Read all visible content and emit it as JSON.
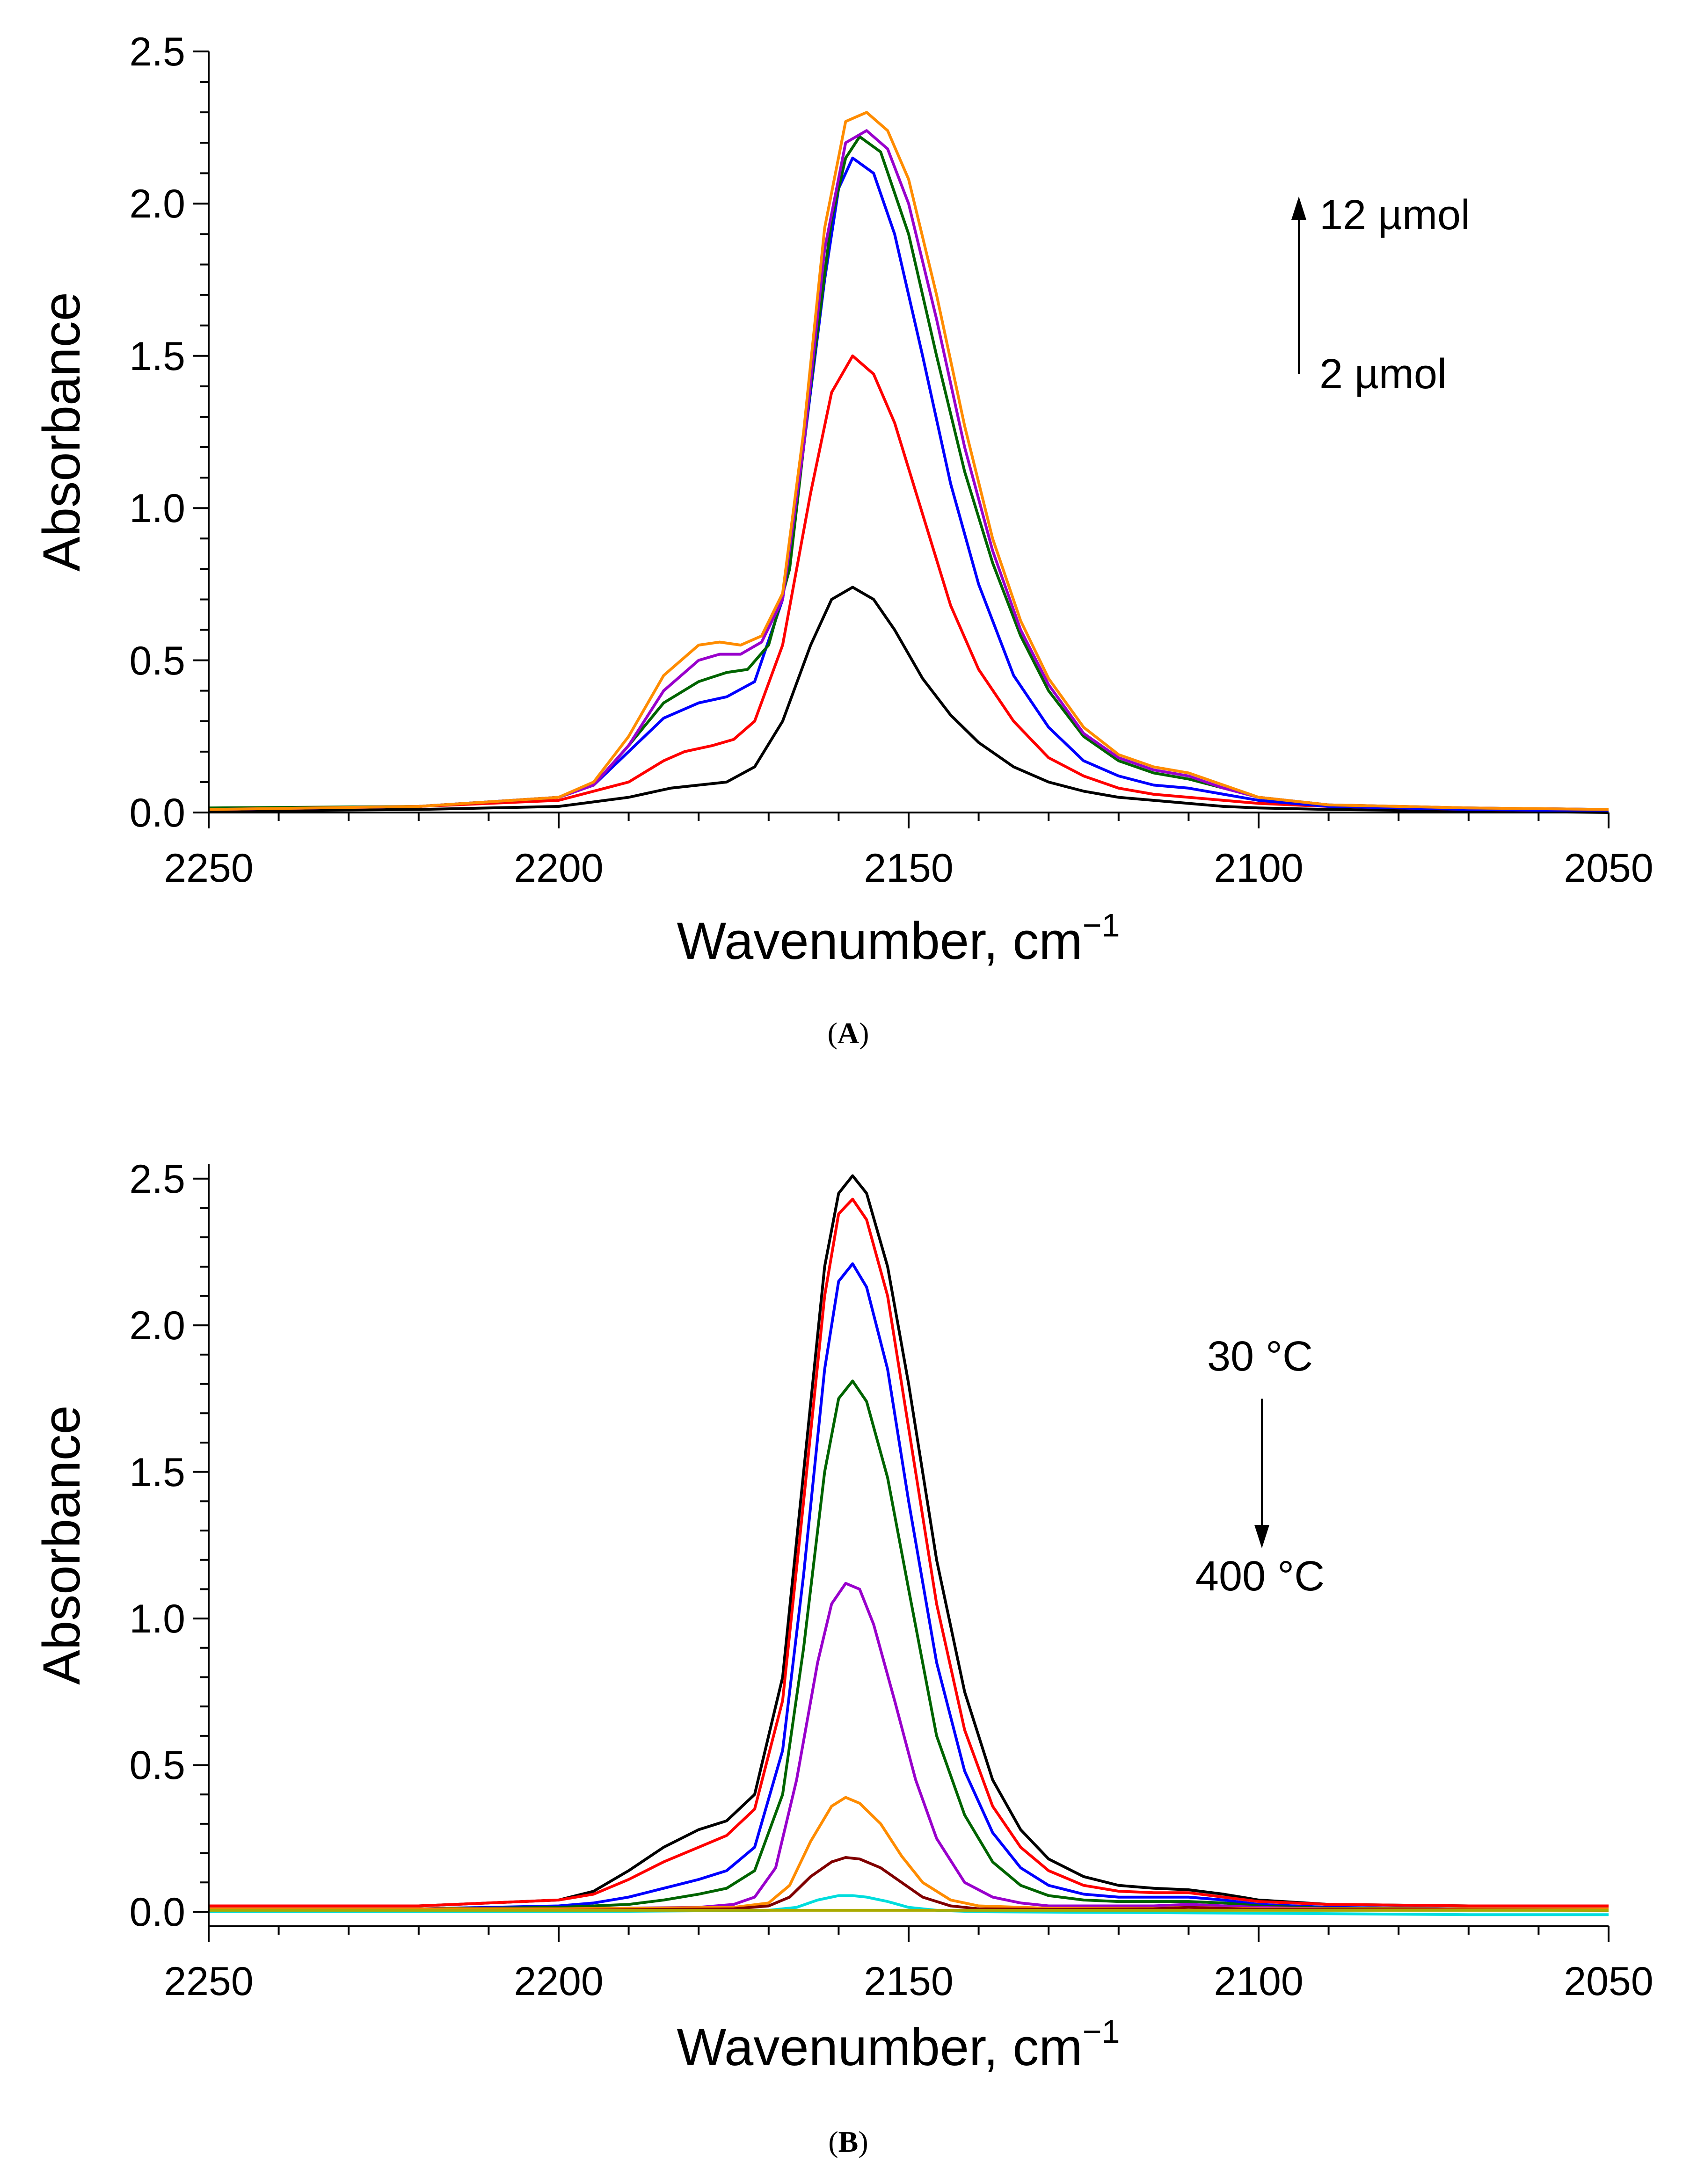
{
  "chart_data": [
    {
      "panel_id": "A",
      "type": "line",
      "caption": "A",
      "xlabel": "Wavenumber, cm",
      "xlabel_sup": "−1",
      "ylabel": "Absorbance",
      "xlim": [
        2250,
        2050
      ],
      "ylim": [
        0,
        2.5
      ],
      "x_ticks": [
        2250,
        2200,
        2150,
        2100,
        2050
      ],
      "x_tick_labels": [
        "2250",
        "2200",
        "2150",
        "2100",
        "2050"
      ],
      "y_ticks": [
        0,
        0.5,
        1.0,
        1.5,
        2.0,
        2.5
      ],
      "y_tick_labels": [
        "0.0",
        "0.5",
        "1.0",
        "1.5",
        "2.0",
        "2.5"
      ],
      "annotations": {
        "arrow_direction": "up",
        "top_label": "12 µmol",
        "bottom_label": "2 µmol"
      },
      "series": [
        {
          "name": "black",
          "color": "#000000",
          "x": [
            2250,
            2220,
            2200,
            2190,
            2184,
            2180,
            2176,
            2172,
            2168,
            2164,
            2161,
            2158,
            2155,
            2152,
            2148,
            2144,
            2140,
            2135,
            2130,
            2125,
            2120,
            2115,
            2110,
            2105,
            2100,
            2090,
            2070,
            2050
          ],
          "y": [
            0.005,
            0.01,
            0.02,
            0.05,
            0.08,
            0.09,
            0.1,
            0.15,
            0.3,
            0.55,
            0.7,
            0.74,
            0.7,
            0.6,
            0.44,
            0.32,
            0.23,
            0.15,
            0.1,
            0.07,
            0.05,
            0.04,
            0.03,
            0.02,
            0.015,
            0.01,
            0.005,
            0.0
          ]
        },
        {
          "name": "red",
          "color": "#ff0000",
          "x": [
            2250,
            2220,
            2200,
            2190,
            2185,
            2182,
            2178,
            2175,
            2172,
            2168,
            2164,
            2161,
            2158,
            2155,
            2152,
            2148,
            2144,
            2140,
            2135,
            2130,
            2125,
            2120,
            2115,
            2110,
            2105,
            2100,
            2090,
            2070,
            2050
          ],
          "y": [
            0.01,
            0.02,
            0.04,
            0.1,
            0.17,
            0.2,
            0.22,
            0.24,
            0.3,
            0.55,
            1.05,
            1.38,
            1.5,
            1.44,
            1.28,
            0.98,
            0.68,
            0.47,
            0.3,
            0.18,
            0.12,
            0.08,
            0.06,
            0.05,
            0.04,
            0.03,
            0.02,
            0.01,
            0.005
          ]
        },
        {
          "name": "blue",
          "color": "#0000ff",
          "x": [
            2250,
            2220,
            2200,
            2195,
            2190,
            2185,
            2180,
            2176,
            2172,
            2168,
            2165,
            2162,
            2160,
            2158,
            2155,
            2152,
            2148,
            2144,
            2140,
            2135,
            2130,
            2125,
            2120,
            2115,
            2110,
            2105,
            2100,
            2090,
            2070,
            2050
          ],
          "y": [
            0.01,
            0.02,
            0.05,
            0.09,
            0.2,
            0.31,
            0.36,
            0.38,
            0.43,
            0.7,
            1.2,
            1.75,
            2.05,
            2.15,
            2.1,
            1.9,
            1.5,
            1.08,
            0.75,
            0.45,
            0.28,
            0.17,
            0.12,
            0.09,
            0.08,
            0.06,
            0.04,
            0.02,
            0.01,
            0.005
          ]
        },
        {
          "name": "green",
          "color": "#006400",
          "x": [
            2250,
            2220,
            2200,
            2195,
            2190,
            2185,
            2180,
            2176,
            2173,
            2170,
            2167,
            2164,
            2161,
            2159,
            2157,
            2154,
            2150,
            2146,
            2142,
            2138,
            2134,
            2130,
            2125,
            2120,
            2115,
            2110,
            2105,
            2100,
            2090,
            2070,
            2050
          ],
          "y": [
            0.015,
            0.02,
            0.05,
            0.09,
            0.22,
            0.36,
            0.43,
            0.46,
            0.47,
            0.55,
            0.8,
            1.4,
            1.95,
            2.15,
            2.22,
            2.17,
            1.9,
            1.5,
            1.12,
            0.82,
            0.58,
            0.4,
            0.25,
            0.17,
            0.13,
            0.11,
            0.08,
            0.05,
            0.025,
            0.015,
            0.01
          ]
        },
        {
          "name": "purple",
          "color": "#9900cc",
          "x": [
            2250,
            2220,
            2200,
            2195,
            2190,
            2185,
            2180,
            2177,
            2174,
            2171,
            2168,
            2165,
            2162,
            2159,
            2156,
            2153,
            2150,
            2146,
            2142,
            2138,
            2134,
            2130,
            2125,
            2120,
            2115,
            2110,
            2105,
            2100,
            2090,
            2070,
            2050
          ],
          "y": [
            0.01,
            0.02,
            0.05,
            0.09,
            0.22,
            0.4,
            0.5,
            0.52,
            0.52,
            0.56,
            0.7,
            1.2,
            1.85,
            2.2,
            2.24,
            2.18,
            2.0,
            1.62,
            1.2,
            0.86,
            0.6,
            0.42,
            0.26,
            0.18,
            0.14,
            0.12,
            0.08,
            0.05,
            0.025,
            0.015,
            0.01
          ]
        },
        {
          "name": "orange",
          "color": "#ff8c00",
          "x": [
            2250,
            2220,
            2200,
            2195,
            2190,
            2185,
            2180,
            2177,
            2174,
            2171,
            2168,
            2165,
            2162,
            2159,
            2156,
            2153,
            2150,
            2146,
            2142,
            2138,
            2134,
            2130,
            2125,
            2120,
            2115,
            2110,
            2105,
            2100,
            2090,
            2070,
            2050
          ],
          "y": [
            0.01,
            0.02,
            0.05,
            0.1,
            0.25,
            0.45,
            0.55,
            0.56,
            0.55,
            0.58,
            0.72,
            1.25,
            1.92,
            2.27,
            2.3,
            2.24,
            2.08,
            1.7,
            1.27,
            0.9,
            0.63,
            0.44,
            0.28,
            0.19,
            0.15,
            0.13,
            0.09,
            0.05,
            0.025,
            0.015,
            0.01
          ]
        }
      ]
    },
    {
      "panel_id": "B",
      "type": "line",
      "caption": "B",
      "xlabel": "Wavenumber, cm",
      "xlabel_sup": "−1",
      "ylabel": "Absorbance",
      "xlim": [
        2250,
        2050
      ],
      "ylim": [
        -0.05,
        2.55
      ],
      "x_ticks": [
        2250,
        2200,
        2150,
        2100,
        2050
      ],
      "x_tick_labels": [
        "2250",
        "2200",
        "2150",
        "2100",
        "2050"
      ],
      "y_ticks": [
        0,
        0.5,
        1.0,
        1.5,
        2.0,
        2.5
      ],
      "y_tick_labels": [
        "0.0",
        "0.5",
        "1.0",
        "1.5",
        "2.0",
        "2.5"
      ],
      "annotations": {
        "arrow_direction": "down",
        "top_label": "30 °C",
        "bottom_label": "400 °C"
      },
      "series": [
        {
          "name": "black",
          "color": "#000000",
          "x": [
            2250,
            2220,
            2200,
            2195,
            2190,
            2185,
            2180,
            2176,
            2172,
            2168,
            2165,
            2162,
            2160,
            2158,
            2156,
            2153,
            2150,
            2146,
            2142,
            2138,
            2134,
            2130,
            2125,
            2120,
            2115,
            2110,
            2105,
            2100,
            2090,
            2070,
            2050
          ],
          "y": [
            0.02,
            0.02,
            0.04,
            0.07,
            0.14,
            0.22,
            0.28,
            0.31,
            0.4,
            0.8,
            1.5,
            2.2,
            2.45,
            2.51,
            2.45,
            2.2,
            1.8,
            1.2,
            0.75,
            0.45,
            0.28,
            0.18,
            0.12,
            0.09,
            0.08,
            0.075,
            0.06,
            0.04,
            0.025,
            0.02,
            0.02
          ]
        },
        {
          "name": "red",
          "color": "#ff0000",
          "x": [
            2250,
            2220,
            2200,
            2195,
            2190,
            2185,
            2180,
            2176,
            2172,
            2168,
            2165,
            2162,
            2160,
            2158,
            2156,
            2153,
            2150,
            2146,
            2142,
            2138,
            2134,
            2130,
            2125,
            2120,
            2115,
            2110,
            2105,
            2100,
            2090,
            2070,
            2050
          ],
          "y": [
            0.02,
            0.02,
            0.04,
            0.06,
            0.11,
            0.17,
            0.22,
            0.26,
            0.35,
            0.72,
            1.4,
            2.1,
            2.38,
            2.43,
            2.36,
            2.1,
            1.65,
            1.05,
            0.62,
            0.36,
            0.22,
            0.14,
            0.09,
            0.07,
            0.065,
            0.065,
            0.05,
            0.035,
            0.025,
            0.02,
            0.02
          ]
        },
        {
          "name": "blue",
          "color": "#0000ff",
          "x": [
            2250,
            2220,
            2200,
            2195,
            2190,
            2185,
            2180,
            2176,
            2172,
            2168,
            2165,
            2162,
            2160,
            2158,
            2156,
            2153,
            2150,
            2146,
            2142,
            2138,
            2134,
            2130,
            2125,
            2120,
            2115,
            2110,
            2105,
            2100,
            2090,
            2070,
            2050
          ],
          "y": [
            0.01,
            0.01,
            0.02,
            0.03,
            0.05,
            0.08,
            0.11,
            0.14,
            0.22,
            0.55,
            1.15,
            1.85,
            2.15,
            2.21,
            2.13,
            1.85,
            1.4,
            0.85,
            0.48,
            0.27,
            0.15,
            0.09,
            0.06,
            0.05,
            0.05,
            0.05,
            0.04,
            0.025,
            0.015,
            0.01,
            0.01
          ]
        },
        {
          "name": "green",
          "color": "#006400",
          "x": [
            2250,
            2220,
            2200,
            2190,
            2185,
            2180,
            2176,
            2172,
            2168,
            2165,
            2162,
            2160,
            2158,
            2156,
            2153,
            2150,
            2146,
            2142,
            2138,
            2134,
            2130,
            2125,
            2120,
            2115,
            2110,
            2105,
            2100,
            2090,
            2070,
            2050
          ],
          "y": [
            0.01,
            0.01,
            0.015,
            0.025,
            0.04,
            0.06,
            0.08,
            0.14,
            0.4,
            0.9,
            1.5,
            1.75,
            1.81,
            1.74,
            1.48,
            1.1,
            0.6,
            0.33,
            0.17,
            0.09,
            0.055,
            0.04,
            0.035,
            0.035,
            0.035,
            0.03,
            0.02,
            0.012,
            0.01,
            0.01
          ]
        },
        {
          "name": "purple",
          "color": "#9900cc",
          "x": [
            2250,
            2200,
            2180,
            2175,
            2172,
            2169,
            2166,
            2163,
            2161,
            2159,
            2157,
            2155,
            2152,
            2149,
            2146,
            2142,
            2138,
            2134,
            2130,
            2125,
            2120,
            2115,
            2110,
            2105,
            2100,
            2090,
            2050
          ],
          "y": [
            0.01,
            0.01,
            0.015,
            0.025,
            0.05,
            0.15,
            0.45,
            0.85,
            1.05,
            1.12,
            1.1,
            0.98,
            0.72,
            0.45,
            0.25,
            0.1,
            0.05,
            0.03,
            0.02,
            0.02,
            0.02,
            0.02,
            0.025,
            0.02,
            0.015,
            0.01,
            0.01
          ]
        },
        {
          "name": "orange",
          "color": "#ff8c00",
          "x": [
            2250,
            2200,
            2175,
            2170,
            2167,
            2164,
            2161,
            2159,
            2157,
            2154,
            2151,
            2148,
            2144,
            2140,
            2130,
            2115,
            2110,
            2100,
            2050
          ],
          "y": [
            0.01,
            0.01,
            0.015,
            0.03,
            0.09,
            0.24,
            0.36,
            0.39,
            0.37,
            0.3,
            0.19,
            0.1,
            0.04,
            0.02,
            0.012,
            0.012,
            0.015,
            0.01,
            0.01
          ]
        },
        {
          "name": "brown",
          "color": "#800000",
          "x": [
            2250,
            2200,
            2175,
            2170,
            2167,
            2164,
            2161,
            2159,
            2157,
            2154,
            2151,
            2148,
            2144,
            2140,
            2130,
            2115,
            2110,
            2100,
            2050
          ],
          "y": [
            0.005,
            0.005,
            0.01,
            0.02,
            0.05,
            0.12,
            0.17,
            0.185,
            0.18,
            0.15,
            0.1,
            0.05,
            0.02,
            0.01,
            0.008,
            0.01,
            0.015,
            0.008,
            0.005
          ]
        },
        {
          "name": "cyan",
          "color": "#00dddd",
          "x": [
            2250,
            2200,
            2170,
            2166,
            2163,
            2160,
            2158,
            2156,
            2153,
            2150,
            2146,
            2140,
            2100,
            2070,
            2050
          ],
          "y": [
            0.0,
            0.0,
            0.005,
            0.015,
            0.04,
            0.055,
            0.055,
            0.05,
            0.035,
            0.015,
            0.005,
            0.0,
            -0.005,
            -0.01,
            -0.01
          ]
        },
        {
          "name": "yellow-green",
          "color": "#aaaa00",
          "x": [
            2250,
            2050
          ],
          "y": [
            0.005,
            0.005
          ]
        }
      ]
    }
  ]
}
